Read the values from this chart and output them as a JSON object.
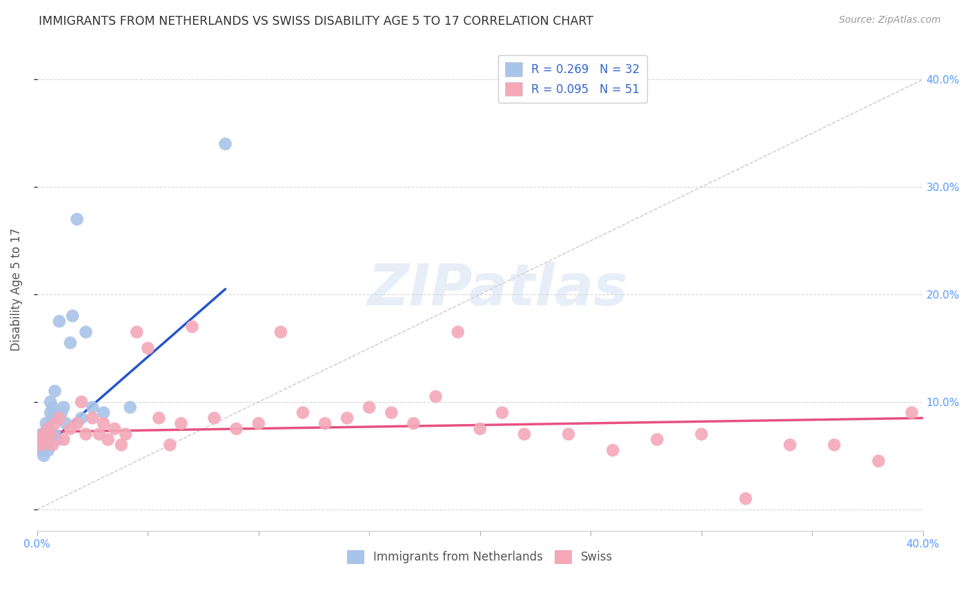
{
  "title": "IMMIGRANTS FROM NETHERLANDS VS SWISS DISABILITY AGE 5 TO 17 CORRELATION CHART",
  "source": "Source: ZipAtlas.com",
  "ylabel": "Disability Age 5 to 17",
  "xlim": [
    0.0,
    0.4
  ],
  "ylim": [
    -0.02,
    0.43
  ],
  "xticks": [
    0.0,
    0.05,
    0.1,
    0.15,
    0.2,
    0.25,
    0.3,
    0.35,
    0.4
  ],
  "xtick_labels_shown": [
    "0.0%",
    "",
    "",
    "",
    "",
    "",
    "",
    "",
    "40.0%"
  ],
  "yticks": [
    0.0,
    0.1,
    0.2,
    0.3,
    0.4
  ],
  "ytick_labels_right": [
    "",
    "10.0%",
    "20.0%",
    "30.0%",
    "40.0%"
  ],
  "legend1_label": "R = 0.269   N = 32",
  "legend2_label": "R = 0.095   N = 51",
  "series1_color": "#a8c4e8",
  "series2_color": "#f4a8b8",
  "trendline1_color": "#2255cc",
  "trendline2_color": "#e85080",
  "refline_color": "#bbbbbb",
  "watermark_text": "ZIPatlas",
  "blue_points_x": [
    0.001,
    0.002,
    0.002,
    0.003,
    0.003,
    0.003,
    0.004,
    0.004,
    0.005,
    0.005,
    0.005,
    0.006,
    0.006,
    0.006,
    0.007,
    0.007,
    0.008,
    0.008,
    0.009,
    0.01,
    0.011,
    0.012,
    0.013,
    0.015,
    0.016,
    0.018,
    0.02,
    0.022,
    0.025,
    0.03,
    0.042,
    0.085
  ],
  "blue_points_y": [
    0.06,
    0.055,
    0.07,
    0.068,
    0.06,
    0.05,
    0.08,
    0.06,
    0.075,
    0.065,
    0.055,
    0.1,
    0.09,
    0.07,
    0.095,
    0.085,
    0.11,
    0.07,
    0.065,
    0.175,
    0.09,
    0.095,
    0.08,
    0.155,
    0.18,
    0.27,
    0.085,
    0.165,
    0.095,
    0.09,
    0.095,
    0.34
  ],
  "pink_points_x": [
    0.001,
    0.002,
    0.003,
    0.004,
    0.005,
    0.006,
    0.007,
    0.008,
    0.01,
    0.012,
    0.015,
    0.018,
    0.02,
    0.022,
    0.025,
    0.028,
    0.03,
    0.032,
    0.035,
    0.038,
    0.04,
    0.045,
    0.05,
    0.055,
    0.06,
    0.065,
    0.07,
    0.08,
    0.09,
    0.1,
    0.11,
    0.12,
    0.13,
    0.14,
    0.15,
    0.16,
    0.17,
    0.18,
    0.19,
    0.2,
    0.21,
    0.22,
    0.24,
    0.26,
    0.28,
    0.3,
    0.32,
    0.34,
    0.36,
    0.38,
    0.395
  ],
  "pink_points_y": [
    0.065,
    0.06,
    0.07,
    0.065,
    0.075,
    0.07,
    0.06,
    0.08,
    0.085,
    0.065,
    0.075,
    0.08,
    0.1,
    0.07,
    0.085,
    0.07,
    0.08,
    0.065,
    0.075,
    0.06,
    0.07,
    0.165,
    0.15,
    0.085,
    0.06,
    0.08,
    0.17,
    0.085,
    0.075,
    0.08,
    0.165,
    0.09,
    0.08,
    0.085,
    0.095,
    0.09,
    0.08,
    0.105,
    0.165,
    0.075,
    0.09,
    0.07,
    0.07,
    0.055,
    0.065,
    0.07,
    0.01,
    0.06,
    0.06,
    0.045,
    0.09
  ],
  "blue_trend_x": [
    0.0,
    0.085
  ],
  "blue_trend_y": [
    0.052,
    0.205
  ],
  "pink_trend_x": [
    0.0,
    0.4
  ],
  "pink_trend_y": [
    0.072,
    0.085
  ],
  "ref_line_x": [
    0.0,
    0.4
  ],
  "ref_line_y": [
    0.0,
    0.4
  ],
  "background_color": "#ffffff",
  "grid_color": "#cccccc",
  "title_color": "#333333",
  "axis_tick_color": "#5599ff",
  "marker_size": 180
}
